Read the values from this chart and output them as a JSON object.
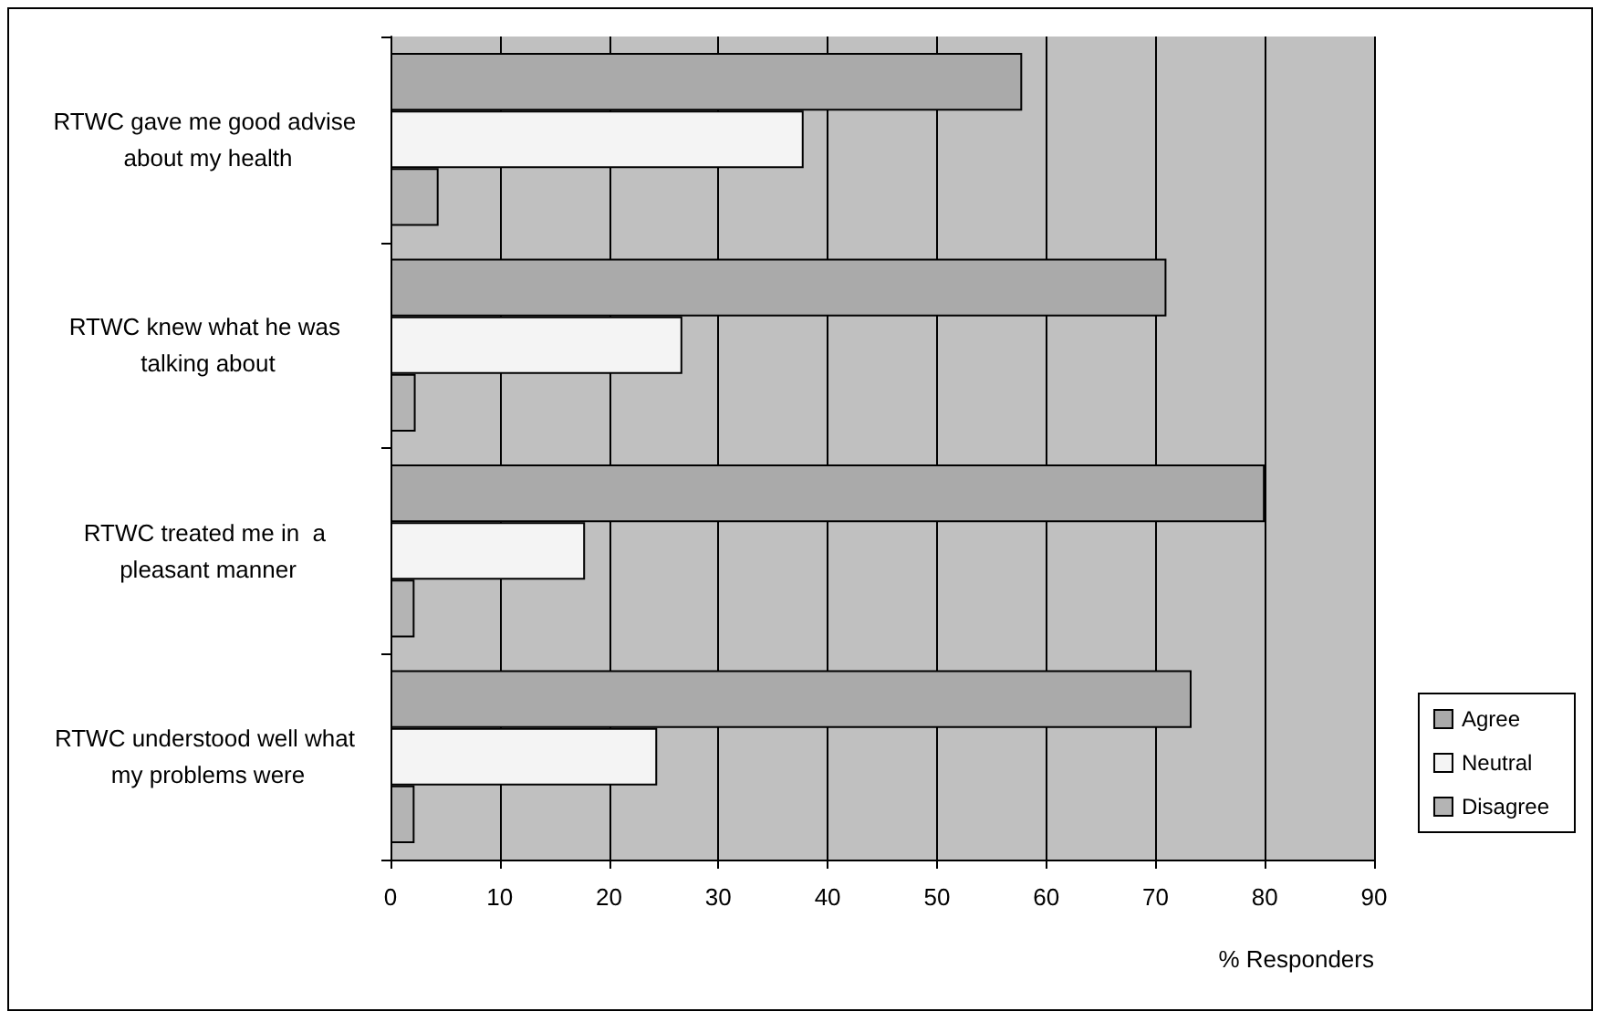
{
  "chart_data": {
    "type": "bar",
    "orientation": "horizontal",
    "xlabel": "% Responders",
    "categories": [
      "RTWC gave me good advise about my health",
      "RTWC knew what he was talking about",
      "RTWC treated me in  a pleasant manner",
      "RTWC understood well what my problems were"
    ],
    "series": [
      {
        "name": "Agree",
        "color": "#aaaaaa",
        "values": [
          57.8,
          71.0,
          80.0,
          73.3
        ]
      },
      {
        "name": "Neutral",
        "color": "#f4f4f4",
        "values": [
          37.8,
          26.7,
          17.8,
          24.4
        ]
      },
      {
        "name": "Disagree",
        "color": "#b4b4b4",
        "values": [
          4.4,
          2.3,
          2.2,
          2.2
        ]
      }
    ],
    "xlim": [
      0,
      90
    ],
    "xticks": [
      0,
      10,
      20,
      30,
      40,
      50,
      60,
      70,
      80,
      90
    ],
    "grid": "x",
    "legend": "right"
  }
}
